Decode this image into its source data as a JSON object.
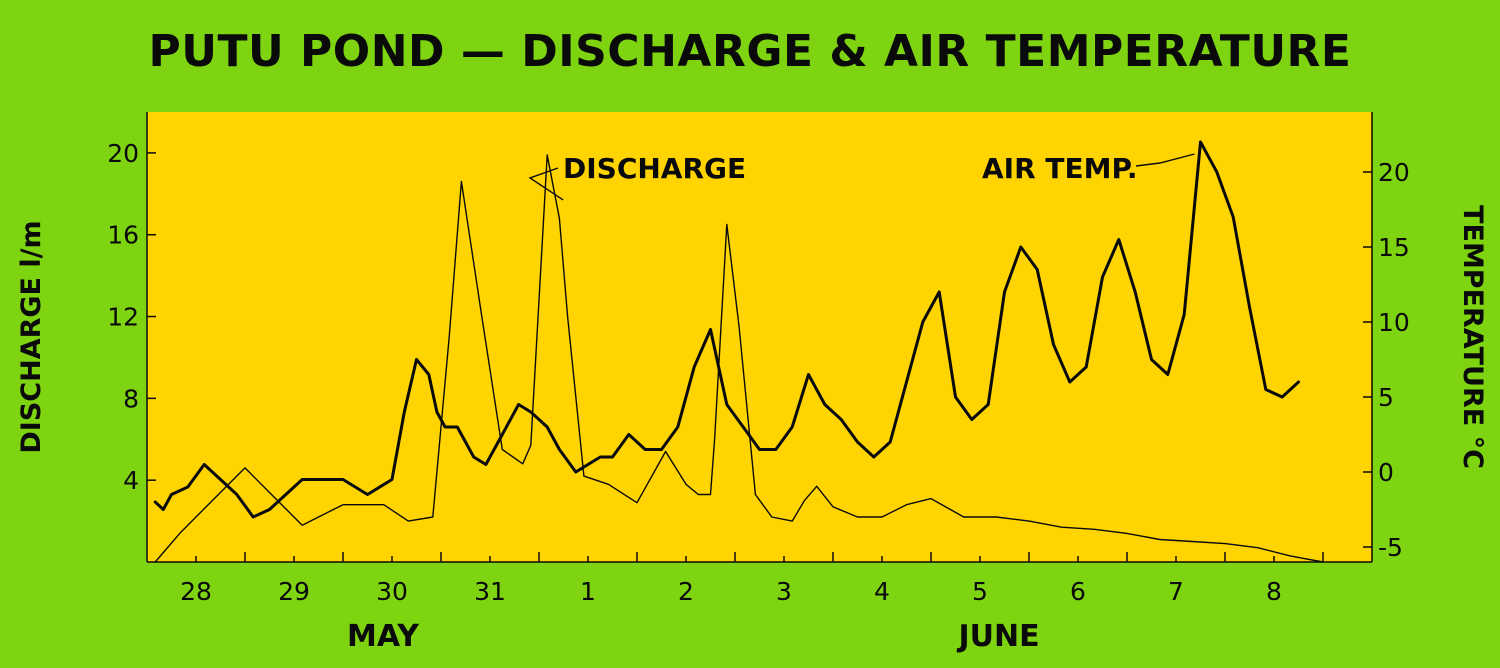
{
  "chart_data": {
    "type": "line",
    "title": "PUTU POND — DISCHARGE & AIR TEMPERATURE",
    "ylabel": "DISCHARGE l/m",
    "y2label": "TEMPERATURE °C",
    "ylim": [
      0,
      22
    ],
    "y2lim": [
      -6,
      24
    ],
    "yticks": [
      4,
      8,
      12,
      16,
      20
    ],
    "y2ticks": [
      "-5",
      "0",
      "5",
      "10",
      "15",
      "20"
    ],
    "y2tick_values": [
      -5,
      0,
      5,
      10,
      15,
      20
    ],
    "xticks": [
      "28",
      "29",
      "30",
      "31",
      "1",
      "2",
      "3",
      "4",
      "5",
      "6",
      "7",
      "8"
    ],
    "months": [
      "MAY",
      "JUNE"
    ],
    "annotations": [
      "DISCHARGE",
      "AIR TEMP."
    ],
    "grid": false,
    "colors": {
      "background": "#7ed411",
      "plot_area": "#ffd400",
      "line": "#0a0a0a"
    },
    "series": [
      {
        "name": "DISCHARGE",
        "axis": "left",
        "x": [
          "May 27 14:00",
          "May 27 20:00",
          "May 28 04:00",
          "May 28 12:00",
          "May 28 18:00",
          "May 29 02:00",
          "May 29 12:00",
          "May 29 22:00",
          "May 30 04:00",
          "May 30 10:00",
          "May 30 14:00",
          "May 30 17:00",
          "May 30 22:00",
          "May 31 03:00",
          "May 31 08:00",
          "May 31 10:00",
          "May 31 14:00",
          "May 31 17:00",
          "May 31 19:00",
          "May 31 23:00",
          "Jun 1 05:00",
          "Jun 1 12:00",
          "Jun 1 19:00",
          "Jun 2 00:00",
          "Jun 2 03:00",
          "Jun 2 06:00",
          "Jun 2 07:00",
          "Jun 2 10:00",
          "Jun 2 13:00",
          "Jun 2 17:00",
          "Jun 2 21:00",
          "Jun 3 02:00",
          "Jun 3 05:00",
          "Jun 3 08:00",
          "Jun 3 12:00",
          "Jun 3 18:00",
          "Jun 4 00:00",
          "Jun 4 06:00",
          "Jun 4 12:00",
          "Jun 4 20:00",
          "Jun 5 04:00",
          "Jun 5 12:00",
          "Jun 5 20:00",
          "Jun 6 04:00",
          "Jun 6 12:00",
          "Jun 6 20:00",
          "Jun 7 04:00",
          "Jun 7 12:00",
          "Jun 7 20:00",
          "Jun 8 04:00",
          "Jun 8 12:00"
        ],
        "values": [
          0.0,
          1.4,
          3.0,
          4.6,
          3.4,
          1.8,
          2.8,
          2.8,
          2.0,
          2.2,
          11.0,
          18.6,
          12.0,
          5.5,
          4.8,
          5.7,
          19.9,
          16.8,
          12.0,
          4.2,
          3.8,
          2.9,
          5.4,
          3.8,
          3.3,
          3.3,
          6.0,
          16.5,
          11.5,
          3.3,
          2.2,
          2.0,
          3.0,
          3.7,
          2.7,
          2.2,
          2.2,
          2.8,
          3.1,
          2.2,
          2.2,
          2.0,
          1.7,
          1.6,
          1.4,
          1.1,
          1.0,
          0.9,
          0.7,
          0.3,
          0.0
        ]
      },
      {
        "name": "AIR TEMP.",
        "axis": "right",
        "x": [
          "May 27 14:00",
          "May 27 16:00",
          "May 27 18:00",
          "May 27 22:00",
          "May 28 02:00",
          "May 28 06:00",
          "May 28 10:00",
          "May 28 14:00",
          "May 28 18:00",
          "May 28 22:00",
          "May 29 02:00",
          "May 29 06:00",
          "May 29 10:00",
          "May 29 12:00",
          "May 29 18:00",
          "May 30 00:00",
          "May 30 03:00",
          "May 30 06:00",
          "May 30 09:00",
          "May 30 11:00",
          "May 30 13:00",
          "May 30 16:00",
          "May 30 20:00",
          "May 30 23:00",
          "May 31 03:00",
          "May 31 07:00",
          "May 31 10:00",
          "May 31 14:00",
          "May 31 17:00",
          "May 31 21:00",
          "Jun 1 00:00",
          "Jun 1 03:00",
          "Jun 1 06:00",
          "Jun 1 10:00",
          "Jun 1 14:00",
          "Jun 1 18:00",
          "Jun 1 22:00",
          "Jun 2 02:00",
          "Jun 2 06:00",
          "Jun 2 10:00",
          "Jun 2 14:00",
          "Jun 2 18:00",
          "Jun 2 22:00",
          "Jun 3 02:00",
          "Jun 3 06:00",
          "Jun 3 10:00",
          "Jun 3 14:00",
          "Jun 3 18:00",
          "Jun 3 22:00",
          "Jun 4 02:00",
          "Jun 4 06:00",
          "Jun 4 10:00",
          "Jun 4 14:00",
          "Jun 4 18:00",
          "Jun 4 22:00",
          "Jun 5 02:00",
          "Jun 5 06:00",
          "Jun 5 10:00",
          "Jun 5 14:00",
          "Jun 5 18:00",
          "Jun 5 22:00",
          "Jun 6 02:00",
          "Jun 6 06:00",
          "Jun 6 10:00",
          "Jun 6 14:00",
          "Jun 6 18:00",
          "Jun 6 22:00",
          "Jun 7 02:00",
          "Jun 7 06:00",
          "Jun 7 10:00",
          "Jun 7 14:00",
          "Jun 7 18:00",
          "Jun 7 22:00",
          "Jun 8 02:00",
          "Jun 8 06:00"
        ],
        "values": [
          -2.0,
          -2.5,
          -1.5,
          -1.0,
          0.5,
          -0.5,
          -1.5,
          -3.0,
          -2.5,
          -1.5,
          -0.5,
          -0.5,
          -0.5,
          -0.5,
          -1.5,
          -0.5,
          4.0,
          7.5,
          6.5,
          4.0,
          3.0,
          3.0,
          1.0,
          0.5,
          2.5,
          4.5,
          4.0,
          3.0,
          1.5,
          0.0,
          0.5,
          1.0,
          1.0,
          2.5,
          1.5,
          1.5,
          3.0,
          7.0,
          9.5,
          4.5,
          3.0,
          1.5,
          1.5,
          3.0,
          6.5,
          4.5,
          3.5,
          2.0,
          1.0,
          2.0,
          6.0,
          10.0,
          12.0,
          5.0,
          3.5,
          4.5,
          12.0,
          15.0,
          13.5,
          8.5,
          6.0,
          7.0,
          13.0,
          15.5,
          12.0,
          7.5,
          6.5,
          10.5,
          22.0,
          20.0,
          17.0,
          11.0,
          5.5,
          5.0,
          6.0
        ]
      }
    ]
  }
}
